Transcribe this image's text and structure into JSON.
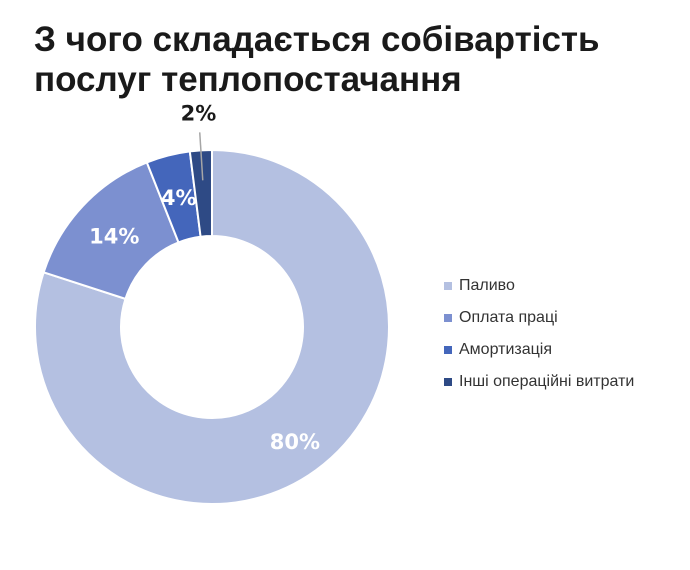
{
  "title_lines": [
    "З чого складається собівартість",
    "послуг теплопостачання"
  ],
  "chart_data": {
    "type": "pie",
    "variant": "donut",
    "title": "З чого складається собівартість послуг теплопостачання",
    "categories": [
      "Паливо",
      "Оплата праці",
      "Амортизація",
      "Інші операційні витрати"
    ],
    "values": [
      80,
      14,
      4,
      2
    ],
    "data_labels": [
      "80%",
      "14%",
      "4%",
      "2%"
    ],
    "colors": [
      "#b4c0e1",
      "#7c90d0",
      "#4466bb",
      "#2e4a85"
    ],
    "label_colors": [
      "#ffffff",
      "#ffffff",
      "#ffffff",
      "#1a1a1a"
    ],
    "legend_position": "right"
  }
}
